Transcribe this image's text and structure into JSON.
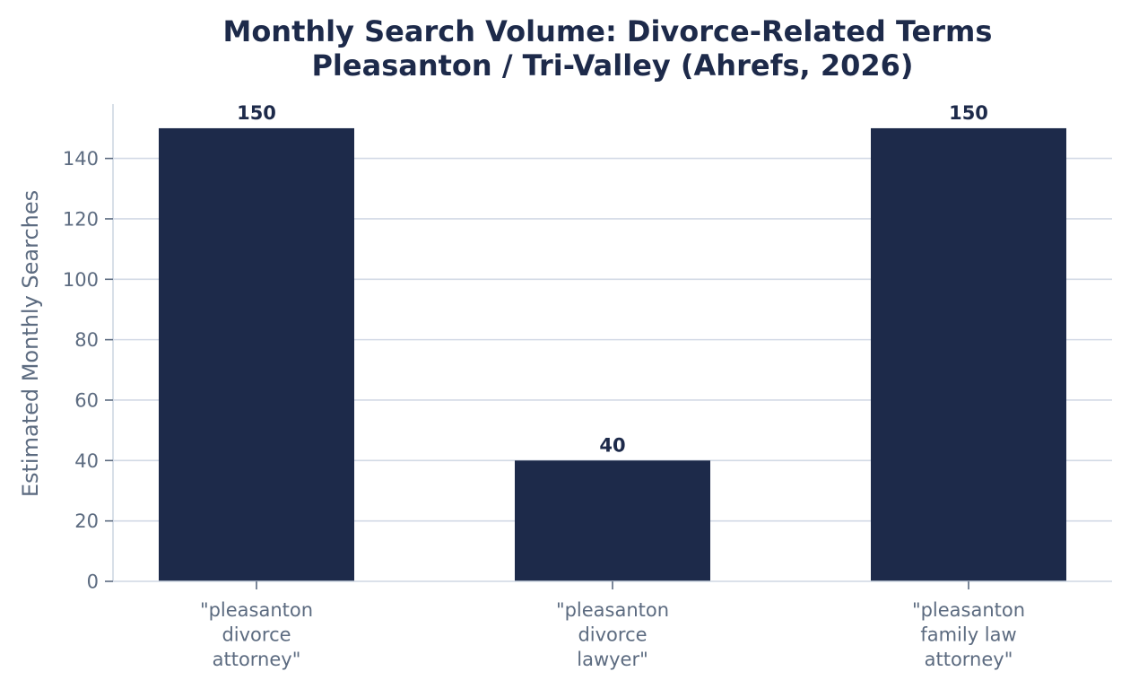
{
  "chart_data": {
    "type": "bar",
    "title_lines": [
      "Monthly Search Volume: Divorce-Related Terms",
      "Pleasanton / Tri-Valley (Ahrefs, 2026)"
    ],
    "xlabel": "",
    "ylabel": "Estimated Monthly Searches",
    "categories": [
      [
        "\"pleasanton",
        "divorce",
        "attorney\""
      ],
      [
        "\"pleasanton",
        "divorce",
        "lawyer\""
      ],
      [
        "\"pleasanton",
        "family law",
        "attorney\""
      ]
    ],
    "values": [
      150,
      40,
      150
    ],
    "data_labels": [
      "150",
      "40",
      "150"
    ],
    "ylim": [
      0,
      158
    ],
    "yticks": [
      0,
      20,
      40,
      60,
      80,
      100,
      120,
      140
    ],
    "grid": "horizontal",
    "legend": "none"
  },
  "colors": {
    "bar": "#1d2a4a",
    "title": "#1d2a4a",
    "data_label": "#1d2a4a",
    "axis_text": "#5c6b80",
    "grid": "#d3dae6",
    "spine": "#cfd7e3"
  }
}
